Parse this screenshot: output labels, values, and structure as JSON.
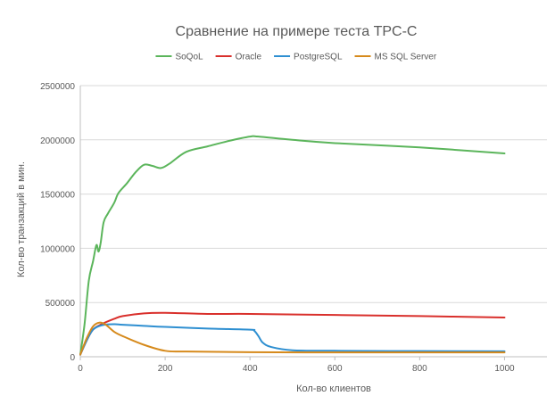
{
  "chart_data": {
    "type": "line",
    "title": "Сравнение на примере теста TPC-C",
    "xlabel": "Кол-во клиентов",
    "ylabel": "Кол-во транзакций в мин.",
    "xlim": [
      0,
      1100
    ],
    "ylim": [
      0,
      2500000
    ],
    "x_ticks": [
      0,
      200,
      400,
      600,
      800,
      1000
    ],
    "y_ticks": [
      0,
      500000,
      1000000,
      1500000,
      2000000,
      2500000
    ],
    "x_tick_labels": [
      "0",
      "200",
      "400",
      "600",
      "800",
      "1000"
    ],
    "y_tick_labels": [
      "0",
      "500000",
      "1000000",
      "1500000",
      "2000000",
      "2500000"
    ],
    "grid": "horizontal",
    "legend_position": "top",
    "series": [
      {
        "name": "SoQoL",
        "color": "#5bb55b",
        "points": [
          [
            0,
            20000
          ],
          [
            10,
            300000
          ],
          [
            20,
            700000
          ],
          [
            30,
            880000
          ],
          [
            38,
            1030000
          ],
          [
            43,
            970000
          ],
          [
            48,
            1050000
          ],
          [
            55,
            1240000
          ],
          [
            65,
            1320000
          ],
          [
            80,
            1420000
          ],
          [
            90,
            1510000
          ],
          [
            110,
            1600000
          ],
          [
            130,
            1700000
          ],
          [
            150,
            1770000
          ],
          [
            170,
            1760000
          ],
          [
            190,
            1740000
          ],
          [
            210,
            1780000
          ],
          [
            250,
            1890000
          ],
          [
            300,
            1940000
          ],
          [
            350,
            1990000
          ],
          [
            400,
            2030000
          ],
          [
            420,
            2030000
          ],
          [
            500,
            2000000
          ],
          [
            600,
            1970000
          ],
          [
            800,
            1930000
          ],
          [
            1000,
            1875000
          ]
        ]
      },
      {
        "name": "Oracle",
        "color": "#d9302c",
        "points": [
          [
            0,
            20000
          ],
          [
            15,
            150000
          ],
          [
            30,
            250000
          ],
          [
            50,
            300000
          ],
          [
            80,
            350000
          ],
          [
            100,
            375000
          ],
          [
            150,
            400000
          ],
          [
            200,
            405000
          ],
          [
            300,
            395000
          ],
          [
            400,
            395000
          ],
          [
            600,
            385000
          ],
          [
            800,
            375000
          ],
          [
            1000,
            362000
          ]
        ]
      },
      {
        "name": "PostgreSQL",
        "color": "#2e8fd1",
        "points": [
          [
            0,
            20000
          ],
          [
            15,
            150000
          ],
          [
            30,
            250000
          ],
          [
            50,
            290000
          ],
          [
            80,
            300000
          ],
          [
            100,
            295000
          ],
          [
            150,
            285000
          ],
          [
            200,
            275000
          ],
          [
            300,
            260000
          ],
          [
            400,
            250000
          ],
          [
            410,
            240000
          ],
          [
            420,
            190000
          ],
          [
            430,
            130000
          ],
          [
            450,
            90000
          ],
          [
            500,
            60000
          ],
          [
            600,
            55000
          ],
          [
            800,
            52000
          ],
          [
            1000,
            50000
          ]
        ]
      },
      {
        "name": "MS SQL Server",
        "color": "#d68a1c",
        "points": [
          [
            0,
            20000
          ],
          [
            15,
            170000
          ],
          [
            30,
            280000
          ],
          [
            45,
            315000
          ],
          [
            60,
            295000
          ],
          [
            80,
            230000
          ],
          [
            100,
            190000
          ],
          [
            150,
            110000
          ],
          [
            200,
            55000
          ],
          [
            250,
            48000
          ],
          [
            400,
            42000
          ],
          [
            600,
            40000
          ],
          [
            800,
            40000
          ],
          [
            1000,
            40000
          ]
        ]
      }
    ]
  }
}
